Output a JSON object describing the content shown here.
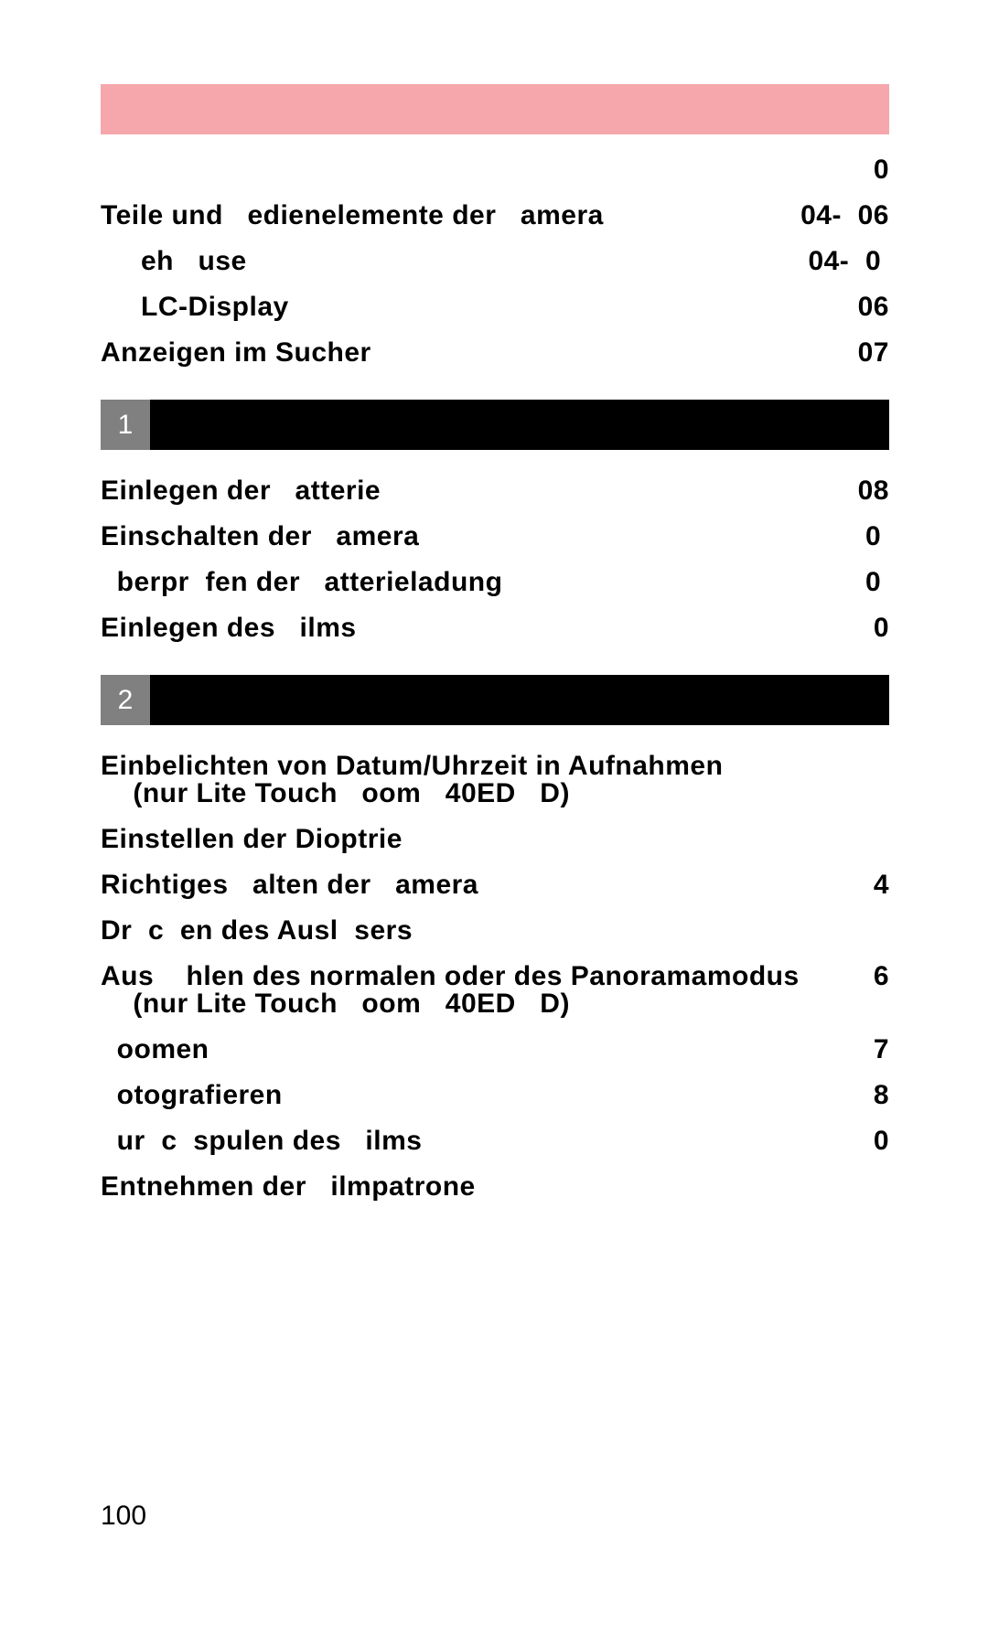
{
  "colors": {
    "pink_bar": "#f5a7ac",
    "section_num_bg": "#808080",
    "section_rest_bg": "#000000",
    "text": "#000000"
  },
  "spacing": {
    "row_gap": 20,
    "block_gap_after_pink": 24,
    "block_gap_before_section": 36,
    "block_gap_after_section": 30
  },
  "intro": {
    "top_page": "0",
    "rows": [
      {
        "label": "Teile und   edienelemente der   amera",
        "pages": "04-  06",
        "indent": 0
      },
      {
        "label": "eh   use",
        "pages": "04-  0 ",
        "indent": 1
      },
      {
        "label": "LC-Display",
        "pages": "06",
        "indent": 1
      },
      {
        "label": "Anzeigen im Sucher",
        "pages": "07",
        "indent": 0
      }
    ]
  },
  "sections": [
    {
      "num": "1",
      "rows": [
        {
          "label": "Einlegen der   atterie",
          "pages": "08",
          "indent": 0
        },
        {
          "label": "Einschalten der   amera",
          "pages": "0 ",
          "indent": 0
        },
        {
          "label": "  berpr  fen der   atterieladung",
          "pages": "0 ",
          "indent": 0
        },
        {
          "label": "Einlegen des   ilms",
          "pages": "0",
          "indent": 0
        }
      ]
    },
    {
      "num": "2",
      "rows": [
        {
          "label": "Einbelichten von Datum/Uhrzeit in Aufnahmen\n    (nur Lite Touch   oom   40ED   D)",
          "pages": "",
          "indent": 0
        },
        {
          "label": "Einstellen der Dioptrie",
          "pages": "",
          "indent": 0
        },
        {
          "label": "Richtiges   alten der   amera",
          "pages": "4",
          "indent": 0
        },
        {
          "label": "Dr  c  en des Ausl  sers",
          "pages": "",
          "indent": 0
        },
        {
          "label": "Aus    hlen des normalen oder des Panoramamodus\n    (nur Lite Touch   oom   40ED   D)",
          "pages": "6",
          "indent": 0
        },
        {
          "label": "  oomen",
          "pages": "7",
          "indent": 0
        },
        {
          "label": "  otografieren",
          "pages": "8",
          "indent": 0
        },
        {
          "label": "  ur  c  spulen des   ilms",
          "pages": "0",
          "indent": 0
        },
        {
          "label": "Entnehmen der   ilmpatrone",
          "pages": "",
          "indent": 0
        }
      ]
    }
  ],
  "page_number": "100"
}
